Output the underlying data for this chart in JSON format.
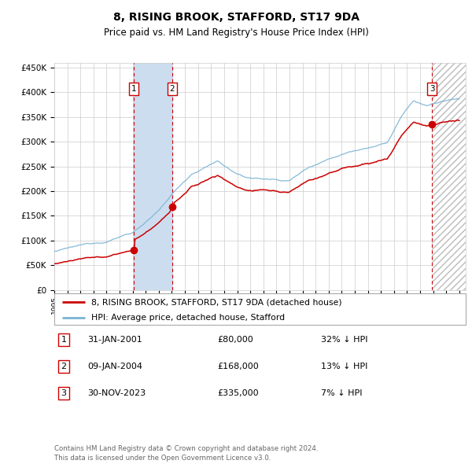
{
  "title": "8, RISING BROOK, STAFFORD, ST17 9DA",
  "subtitle": "Price paid vs. HM Land Registry's House Price Index (HPI)",
  "ylim": [
    0,
    460000
  ],
  "xlim_start": 1995.0,
  "xlim_end": 2026.5,
  "yticks": [
    0,
    50000,
    100000,
    150000,
    200000,
    250000,
    300000,
    350000,
    400000,
    450000
  ],
  "ytick_labels": [
    "£0",
    "£50K",
    "£100K",
    "£150K",
    "£200K",
    "£250K",
    "£300K",
    "£350K",
    "£400K",
    "£450K"
  ],
  "xtick_years": [
    1995,
    1996,
    1997,
    1998,
    1999,
    2000,
    2001,
    2002,
    2003,
    2004,
    2005,
    2006,
    2007,
    2008,
    2009,
    2010,
    2011,
    2012,
    2013,
    2014,
    2015,
    2016,
    2017,
    2018,
    2019,
    2020,
    2021,
    2022,
    2023,
    2024,
    2025,
    2026
  ],
  "sale1_date": 2001.08,
  "sale1_price": 80000,
  "sale1_label": "1",
  "sale1_text": "31-JAN-2001",
  "sale1_amount": "£80,000",
  "sale1_hpi": "32% ↓ HPI",
  "sale2_date": 2004.03,
  "sale2_price": 168000,
  "sale2_label": "2",
  "sale2_text": "09-JAN-2004",
  "sale2_amount": "£168,000",
  "sale2_hpi": "13% ↓ HPI",
  "sale3_date": 2023.92,
  "sale3_price": 335000,
  "sale3_label": "3",
  "sale3_text": "30-NOV-2023",
  "sale3_amount": "£335,000",
  "sale3_hpi": "7% ↓ HPI",
  "hpi_color": "#7ab3d4",
  "price_color": "#cc0000",
  "marker_color": "#cc0000",
  "vline_color": "#cc0000",
  "shade_color": "#ccddf0",
  "hatch_color": "#bbbbbb",
  "grid_color": "#cccccc",
  "bg_color": "#ffffff",
  "legend_label_price": "8, RISING BROOK, STAFFORD, ST17 9DA (detached house)",
  "legend_label_hpi": "HPI: Average price, detached house, Stafford",
  "footer": "Contains HM Land Registry data © Crown copyright and database right 2024.\nThis data is licensed under the Open Government Licence v3.0."
}
